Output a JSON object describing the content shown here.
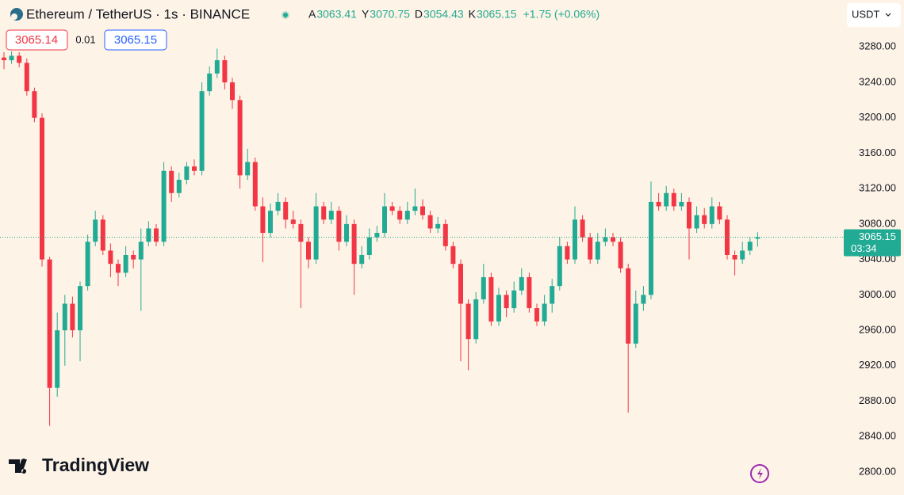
{
  "header": {
    "symbol": "Ethereum / TetherUS · 1s · BINANCE",
    "ohlc": [
      {
        "label": "A",
        "value": "3063.41"
      },
      {
        "label": "Y",
        "value": "3070.75"
      },
      {
        "label": "D",
        "value": "3054.43"
      },
      {
        "label": "K",
        "value": "3065.15"
      }
    ],
    "change": "+1.75 (+0.06%)"
  },
  "trade": {
    "sell": "3065.14",
    "spread": "0.01",
    "buy": "3065.15"
  },
  "currency": "USDT",
  "countdown": "03:34",
  "brand": "TradingView",
  "chart_data": {
    "type": "candlestick",
    "up_color": "#22ab94",
    "down_color": "#f23645",
    "grid": false,
    "ylim": [
      2774,
      3333
    ],
    "yticks": [
      {
        "value": 2800,
        "label": "2800.00"
      },
      {
        "value": 2840,
        "label": "2840.00"
      },
      {
        "value": 2880,
        "label": "2880.00"
      },
      {
        "value": 2920,
        "label": "2920.00"
      },
      {
        "value": 2960,
        "label": "2960.00"
      },
      {
        "value": 3000,
        "label": "3000.00"
      },
      {
        "value": 3040,
        "label": "3040.00"
      },
      {
        "value": 3080,
        "label": "3080.00"
      },
      {
        "value": 3120,
        "label": "3120.00"
      },
      {
        "value": 3160,
        "label": "3160.00"
      },
      {
        "value": 3200,
        "label": "3200.00"
      },
      {
        "value": 3240,
        "label": "3240.00"
      },
      {
        "value": 3280,
        "label": "3280.00"
      }
    ],
    "open": [
      3268,
      3265,
      3270,
      3262,
      3230,
      3200,
      3040,
      2895,
      2960,
      2990,
      2960,
      3010,
      3060,
      3085,
      3050,
      3035,
      3025,
      3045,
      3040,
      3060,
      3075,
      3060,
      3140,
      3115,
      3130,
      3145,
      3140,
      3230,
      3250,
      3265,
      3240,
      3220,
      3135,
      3150,
      3100,
      3070,
      3095,
      3105,
      3085,
      3080,
      3060,
      3040,
      3100,
      3085,
      3095,
      3060,
      3080,
      3035,
      3045,
      3065,
      3070,
      3100,
      3095,
      3085,
      3095,
      3100,
      3090,
      3075,
      3080,
      3055,
      3035,
      2990,
      2950,
      2995,
      3020,
      2970,
      3000,
      2985,
      3005,
      3020,
      2985,
      2970,
      2990,
      3010,
      3055,
      3040,
      3085,
      3065,
      3040,
      3060,
      3065,
      3060,
      3030,
      2945,
      2990,
      3000,
      3105,
      3100,
      3115,
      3100,
      3105,
      3075,
      3090,
      3080,
      3100,
      3085,
      3045,
      3040,
      3050,
      3063.41
    ],
    "high": [
      3274,
      3275,
      3274,
      3267,
      3234,
      3205,
      3043,
      2980,
      3000,
      2998,
      3015,
      3068,
      3095,
      3090,
      3058,
      3040,
      3055,
      3050,
      3075,
      3083,
      3080,
      3150,
      3145,
      3138,
      3150,
      3153,
      3240,
      3258,
      3278,
      3270,
      3245,
      3225,
      3165,
      3155,
      3110,
      3103,
      3115,
      3110,
      3095,
      3085,
      3065,
      3115,
      3105,
      3105,
      3100,
      3090,
      3085,
      3055,
      3075,
      3078,
      3115,
      3105,
      3100,
      3105,
      3120,
      3108,
      3095,
      3088,
      3085,
      3060,
      3040,
      2995,
      3003,
      3035,
      3025,
      3008,
      3005,
      3015,
      3030,
      3025,
      2990,
      3000,
      3018,
      3065,
      3060,
      3100,
      3090,
      3070,
      3070,
      3075,
      3070,
      3065,
      3035,
      3005,
      3010,
      3128,
      3115,
      3123,
      3120,
      3115,
      3110,
      3100,
      3098,
      3110,
      3105,
      3090,
      3050,
      3060,
      3065,
      3070.75
    ],
    "low": [
      3255,
      3261,
      3257,
      3225,
      3195,
      3032,
      2852,
      2885,
      2920,
      2952,
      2925,
      3005,
      3055,
      3045,
      3020,
      3010,
      3020,
      3030,
      2982,
      3055,
      3055,
      3055,
      3105,
      3110,
      3125,
      3135,
      3135,
      3225,
      3245,
      3232,
      3210,
      3120,
      3130,
      3095,
      3037,
      3065,
      3090,
      3075,
      3075,
      2985,
      3030,
      3035,
      3080,
      3080,
      3050,
      3055,
      3000,
      3030,
      3040,
      3060,
      3065,
      3090,
      3080,
      3080,
      3090,
      3085,
      3070,
      3070,
      3050,
      3030,
      2925,
      2915,
      2945,
      2990,
      2965,
      2965,
      2975,
      2980,
      3000,
      2980,
      2965,
      2965,
      2980,
      3005,
      3035,
      3035,
      3060,
      3035,
      3035,
      3055,
      3055,
      3025,
      2867,
      2940,
      2982,
      2995,
      3095,
      3095,
      3095,
      3095,
      3040,
      3070,
      3075,
      3075,
      3080,
      3040,
      3022,
      3035,
      3045,
      3054.43
    ],
    "close": [
      3265,
      3270,
      3262,
      3230,
      3200,
      3040,
      2895,
      2960,
      2990,
      2960,
      3010,
      3060,
      3085,
      3050,
      3035,
      3025,
      3045,
      3040,
      3060,
      3075,
      3060,
      3140,
      3115,
      3130,
      3145,
      3140,
      3230,
      3250,
      3265,
      3240,
      3220,
      3135,
      3150,
      3100,
      3070,
      3095,
      3105,
      3085,
      3080,
      3060,
      3040,
      3100,
      3085,
      3095,
      3060,
      3080,
      3035,
      3045,
      3065,
      3070,
      3100,
      3095,
      3085,
      3095,
      3100,
      3090,
      3075,
      3080,
      3055,
      3035,
      2990,
      2950,
      2995,
      3020,
      2970,
      3000,
      2985,
      3005,
      3020,
      2985,
      2970,
      2990,
      3010,
      3055,
      3040,
      3085,
      3065,
      3040,
      3060,
      3065,
      3060,
      3030,
      2945,
      2990,
      3000,
      3105,
      3100,
      3115,
      3100,
      3105,
      3075,
      3090,
      3080,
      3100,
      3085,
      3045,
      3040,
      3050,
      3060,
      3065.15
    ]
  }
}
